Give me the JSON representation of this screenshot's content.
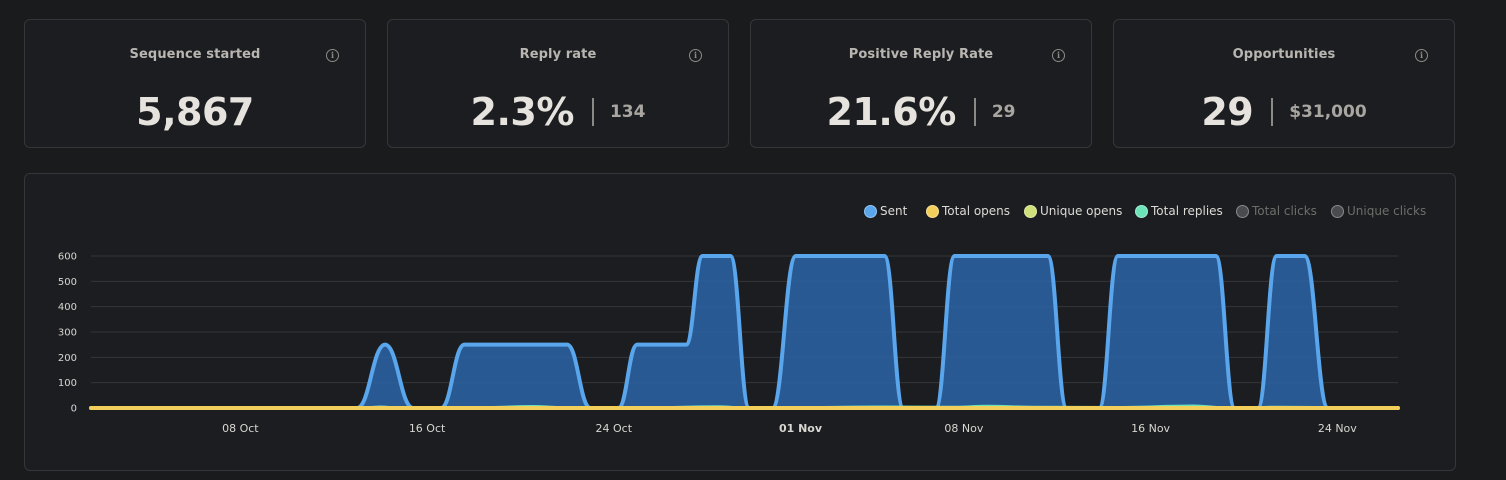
{
  "cards": [
    {
      "title": "Sequence started",
      "value": "5,867",
      "sub": ""
    },
    {
      "title": "Reply rate",
      "value": "2.3%",
      "sub": "134"
    },
    {
      "title": "Positive Reply Rate",
      "value": "21.6%",
      "sub": "29"
    },
    {
      "title": "Opportunities",
      "value": "29",
      "sub": "$31,000"
    }
  ],
  "info_icon": "info-icon",
  "legend": [
    {
      "label": "Sent",
      "color": "#5aa6ec",
      "active": true
    },
    {
      "label": "Total opens",
      "color": "#f2cf5b",
      "active": true
    },
    {
      "label": "Unique opens",
      "color": "#cfe07a",
      "active": true
    },
    {
      "label": "Total replies",
      "color": "#6de3b8",
      "active": true
    },
    {
      "label": "Total clicks",
      "color": "#4a4b4e",
      "active": false
    },
    {
      "label": "Unique clicks",
      "color": "#4a4b4e",
      "active": false
    }
  ],
  "chart_data": {
    "type": "area",
    "title": "",
    "xlabel": "",
    "ylabel": "",
    "ylim": [
      0,
      600
    ],
    "yticks": [
      0,
      100,
      200,
      300,
      400,
      500,
      600
    ],
    "x_start": "2 Oct",
    "x_end": "28 Nov",
    "xticks": [
      {
        "label": "08 Oct",
        "day": 8,
        "bold": false
      },
      {
        "label": "16 Oct",
        "day": 16,
        "bold": false
      },
      {
        "label": "24 Oct",
        "day": 24,
        "bold": false
      },
      {
        "label": "01 Nov",
        "day": 32,
        "bold": true
      },
      {
        "label": "08 Nov",
        "day": 39,
        "bold": false
      },
      {
        "label": "16 Nov",
        "day": 47,
        "bold": false
      },
      {
        "label": "24 Nov",
        "day": 55,
        "bold": false
      }
    ],
    "grid": true,
    "legend_position": "top-right",
    "series": [
      {
        "name": "Sent",
        "points": [
          [
            1.6,
            0
          ],
          [
            12.0,
            0
          ],
          [
            13.0,
            0
          ],
          [
            14.2,
            250
          ],
          [
            15.4,
            0
          ],
          [
            16.6,
            0
          ],
          [
            17.6,
            250
          ],
          [
            22.0,
            250
          ],
          [
            23.0,
            0
          ],
          [
            24.2,
            0
          ],
          [
            25.0,
            250
          ],
          [
            27.1,
            250
          ],
          [
            27.8,
            600
          ],
          [
            29.0,
            600
          ],
          [
            29.8,
            0
          ],
          [
            30.8,
            0
          ],
          [
            31.8,
            600
          ],
          [
            35.6,
            600
          ],
          [
            36.4,
            0
          ],
          [
            37.8,
            0
          ],
          [
            38.6,
            600
          ],
          [
            42.6,
            600
          ],
          [
            43.4,
            0
          ],
          [
            44.8,
            0
          ],
          [
            45.6,
            600
          ],
          [
            49.8,
            600
          ],
          [
            50.6,
            0
          ],
          [
            51.6,
            0
          ],
          [
            52.4,
            600
          ],
          [
            53.6,
            600
          ],
          [
            54.6,
            0
          ],
          [
            57.6,
            0
          ]
        ]
      },
      {
        "name": "Total opens",
        "points": [
          [
            1.6,
            0
          ],
          [
            57.6,
            0
          ]
        ]
      },
      {
        "name": "Unique opens",
        "points": [
          [
            1.6,
            0
          ],
          [
            57.6,
            0
          ]
        ]
      },
      {
        "name": "Total replies",
        "points": [
          [
            1.6,
            0
          ],
          [
            13.0,
            0
          ],
          [
            14.0,
            6
          ],
          [
            15.0,
            0
          ],
          [
            17.6,
            0
          ],
          [
            18.6,
            4
          ],
          [
            20.5,
            8
          ],
          [
            22.0,
            3
          ],
          [
            25.0,
            2
          ],
          [
            28.5,
            7
          ],
          [
            29.8,
            0
          ],
          [
            31.8,
            3
          ],
          [
            35.0,
            6
          ],
          [
            38.6,
            5
          ],
          [
            40.0,
            9
          ],
          [
            42.0,
            5
          ],
          [
            45.6,
            4
          ],
          [
            48.8,
            10
          ],
          [
            50.6,
            0
          ],
          [
            52.4,
            5
          ],
          [
            54.0,
            4
          ],
          [
            57.6,
            0
          ]
        ]
      }
    ]
  }
}
